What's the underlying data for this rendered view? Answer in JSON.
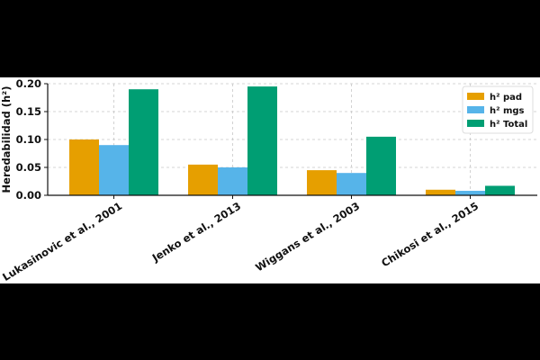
{
  "chart_data": {
    "type": "bar",
    "categories": [
      "Lukasinovic et al., 2001",
      "Jenko et al., 2013",
      "Wiggans et al., 2003",
      "Chikosi et al., 2015"
    ],
    "series": [
      {
        "name": "h² pad",
        "color": "#E69F00",
        "values": [
          0.1,
          0.055,
          0.045,
          0.01
        ]
      },
      {
        "name": "h² mgs",
        "color": "#56B4E9",
        "values": [
          0.09,
          0.05,
          0.04,
          0.008
        ]
      },
      {
        "name": "h² Total",
        "color": "#009E73",
        "values": [
          0.19,
          0.195,
          0.105,
          0.017
        ]
      }
    ],
    "title": "",
    "xlabel": "",
    "ylabel": "Heredabilidad (h²)",
    "ylim": [
      0,
      0.2
    ],
    "yticks": [
      "0.00",
      "0.05",
      "0.10",
      "0.15",
      "0.20"
    ],
    "grid": true,
    "legend_position": "top-right"
  }
}
